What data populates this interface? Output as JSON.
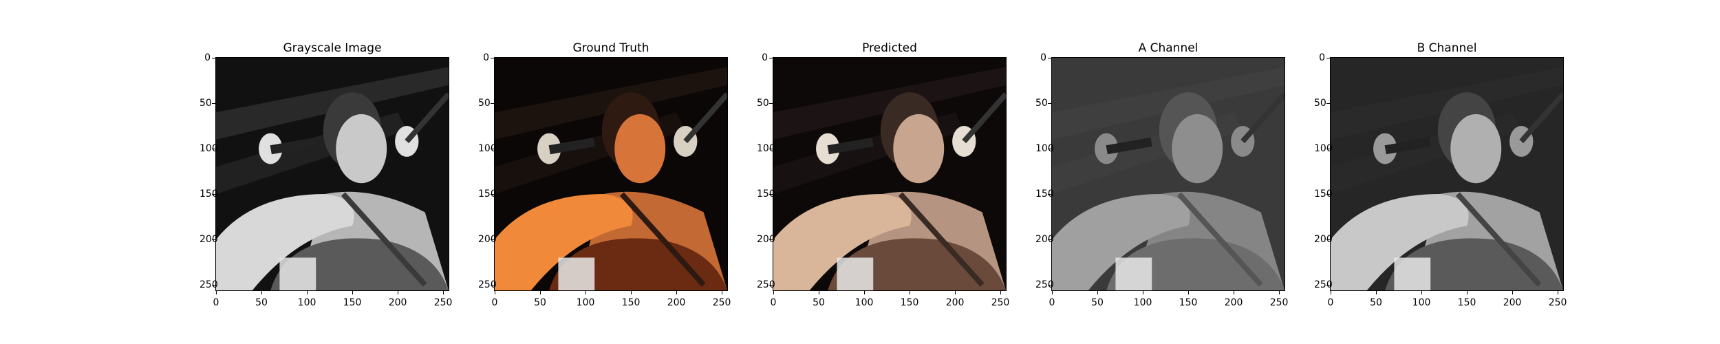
{
  "figure": {
    "panels": [
      {
        "title": "Grayscale Image",
        "style": "gray"
      },
      {
        "title": "Ground Truth",
        "style": "color"
      },
      {
        "title": "Predicted",
        "style": "muted"
      },
      {
        "title": "A Channel",
        "style": "channel-a"
      },
      {
        "title": "B Channel",
        "style": "channel-b"
      }
    ],
    "xticks": [
      "0",
      "50",
      "100",
      "150",
      "200",
      "250"
    ],
    "yticks": [
      "0",
      "50",
      "100",
      "150",
      "200",
      "250"
    ]
  }
}
